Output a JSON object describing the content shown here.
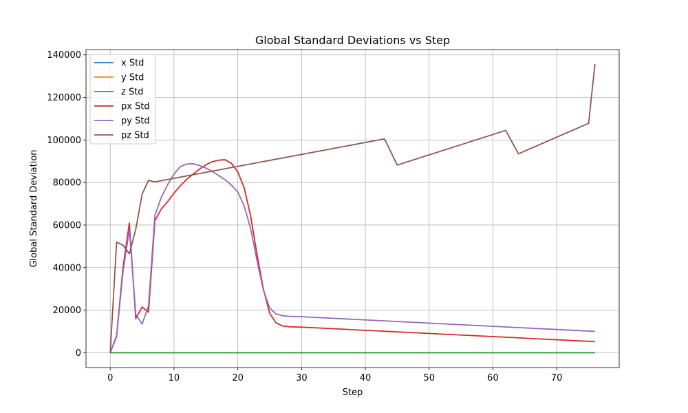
{
  "chart_data": {
    "type": "line",
    "title": "Global Standard Deviations vs Step",
    "xlabel": "Step",
    "ylabel": "Global Standard Deviation",
    "xlim": [
      -3.8,
      79.8
    ],
    "ylim": [
      -7000,
      142500
    ],
    "xticks": [
      0,
      10,
      20,
      30,
      40,
      50,
      60,
      70
    ],
    "yticks": [
      0,
      20000,
      40000,
      60000,
      80000,
      100000,
      120000,
      140000
    ],
    "grid": true,
    "legend_position": "upper-left",
    "series": [
      {
        "name": "x Std",
        "color": "#1f77b4",
        "x": [
          0,
          76
        ],
        "y": [
          0,
          0
        ]
      },
      {
        "name": "y Std",
        "color": "#ff7f0e",
        "x": [
          0,
          76
        ],
        "y": [
          0,
          0
        ]
      },
      {
        "name": "z Std",
        "color": "#2ca02c",
        "x": [
          0,
          76
        ],
        "y": [
          0,
          0
        ]
      },
      {
        "name": "px Std",
        "color": "#d62728",
        "x": [
          0,
          1,
          2,
          3,
          4,
          5,
          6,
          7,
          8,
          9,
          10,
          11,
          12,
          13,
          14,
          15,
          16,
          17,
          18,
          19,
          20,
          21,
          22,
          23,
          24,
          25,
          26,
          27,
          28,
          30,
          76
        ],
        "y": [
          0,
          8000,
          40000,
          61000,
          16000,
          21500,
          19000,
          62000,
          67500,
          71000,
          75000,
          78500,
          81500,
          84000,
          86300,
          88300,
          89800,
          90500,
          90700,
          89000,
          85000,
          77500,
          64500,
          46500,
          30000,
          18500,
          14000,
          12600,
          12200,
          12000,
          5200
        ]
      },
      {
        "name": "py Std",
        "color": "#9467bd",
        "x": [
          0,
          1,
          2,
          3,
          4,
          5,
          6,
          7,
          8,
          9,
          10,
          11,
          12,
          13,
          14,
          15,
          16,
          17,
          18,
          19,
          20,
          21,
          22,
          23,
          24,
          25,
          26,
          27,
          28,
          30,
          76
        ],
        "y": [
          0,
          7500,
          38000,
          58000,
          18000,
          13500,
          22000,
          64500,
          73000,
          79000,
          84000,
          87500,
          88700,
          88800,
          88000,
          86800,
          85200,
          83300,
          81300,
          78800,
          75500,
          69000,
          58500,
          43500,
          29500,
          21000,
          18200,
          17400,
          17100,
          16900,
          10000
        ]
      },
      {
        "name": "pz Std",
        "color": "#8c564b",
        "x": [
          0,
          1,
          2,
          3,
          4,
          5,
          6,
          7,
          43,
          45,
          62,
          64,
          75,
          76
        ],
        "y": [
          0,
          52000,
          50500,
          46500,
          58000,
          74500,
          81000,
          80300,
          100500,
          88200,
          104500,
          93500,
          107800,
          135700
        ]
      }
    ]
  }
}
